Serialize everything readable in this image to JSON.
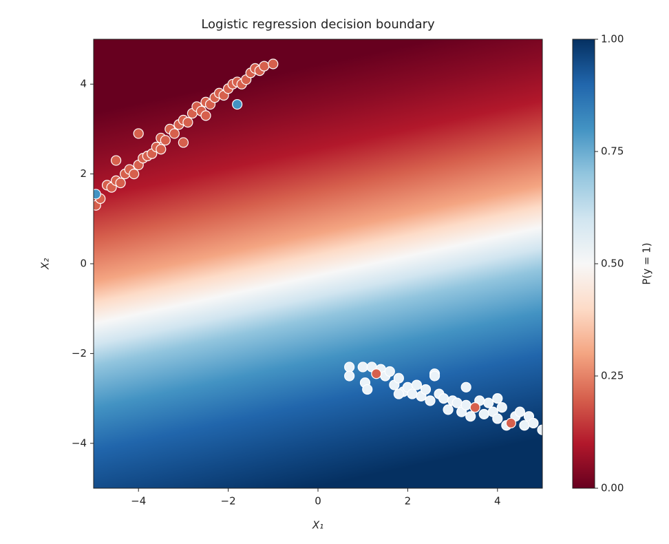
{
  "chart_data": {
    "type": "scatter",
    "title": "Logistic regression decision boundary",
    "x_label": "X₁",
    "y_label": "X₂",
    "xlim": [
      -5,
      5
    ],
    "ylim": [
      -5,
      5
    ],
    "xticks": [
      {
        "value": -4,
        "label": "−4"
      },
      {
        "value": -2,
        "label": "−2"
      },
      0,
      2,
      4
    ],
    "yticks": [
      {
        "value": -4,
        "label": "−4"
      },
      {
        "value": -2,
        "label": "−2"
      },
      0,
      2,
      4
    ],
    "series": [
      {
        "color": "#d6604d",
        "x": [
          -4.95,
          -4.85,
          -4.7,
          -4.6,
          -4.5,
          -4.4,
          -4.3,
          -4.2,
          -4.1,
          -4.0,
          -3.9,
          -3.8,
          -3.7,
          -3.6,
          -3.5,
          -3.4,
          -3.3,
          -3.2,
          -3.1,
          -3.0,
          -2.9,
          -2.8,
          -2.7,
          -2.6,
          -2.5,
          -2.4,
          -2.3,
          -2.2,
          -2.1,
          -2.0,
          -1.9,
          -1.8,
          -1.7,
          -1.6,
          -1.5,
          -1.4,
          -1.3,
          -1.2,
          -1.0,
          -4.0,
          -4.5,
          -3.5,
          -3.0,
          -2.5
        ],
        "y": [
          1.3,
          1.45,
          1.75,
          1.7,
          1.85,
          1.8,
          2.0,
          2.1,
          2.0,
          2.2,
          2.35,
          2.4,
          2.45,
          2.6,
          2.8,
          2.75,
          3.0,
          2.9,
          3.1,
          3.2,
          3.15,
          3.35,
          3.5,
          3.4,
          3.6,
          3.55,
          3.7,
          3.8,
          3.75,
          3.9,
          4.0,
          4.05,
          4.0,
          4.1,
          4.25,
          4.35,
          4.3,
          4.4,
          4.45,
          2.9,
          2.3,
          2.55,
          2.7,
          3.3
        ]
      },
      {
        "color": "#eaf2f8",
        "x": [
          0.7,
          0.7,
          1.0,
          1.05,
          1.1,
          1.2,
          1.4,
          1.5,
          1.6,
          1.7,
          1.8,
          1.9,
          2.0,
          2.1,
          2.2,
          2.3,
          2.4,
          2.5,
          2.6,
          2.7,
          2.8,
          2.9,
          3.0,
          3.1,
          3.2,
          3.3,
          3.4,
          3.5,
          3.6,
          3.7,
          3.8,
          3.9,
          4.0,
          4.1,
          4.2,
          4.4,
          4.5,
          4.6,
          4.7,
          4.8,
          5.0,
          2.6,
          3.3,
          1.8,
          4.0
        ],
        "y": [
          -2.3,
          -2.5,
          -2.3,
          -2.65,
          -2.8,
          -2.3,
          -2.35,
          -2.5,
          -2.4,
          -2.7,
          -2.55,
          -2.85,
          -2.75,
          -2.9,
          -2.7,
          -2.95,
          -2.8,
          -3.05,
          -2.45,
          -2.9,
          -3.0,
          -3.25,
          -3.05,
          -3.1,
          -3.3,
          -2.75,
          -3.4,
          -3.2,
          -3.05,
          -3.35,
          -3.1,
          -3.3,
          -3.45,
          -3.2,
          -3.6,
          -3.4,
          -3.3,
          -3.6,
          -3.4,
          -3.55,
          -3.7,
          -2.5,
          -3.15,
          -2.9,
          -3.0
        ]
      },
      {
        "color": "#4393c3",
        "x": [
          -1.8,
          -4.95
        ],
        "y": [
          3.55,
          1.55
        ]
      },
      {
        "color": "#d6604d",
        "x": [
          1.3,
          3.5,
          4.3
        ],
        "y": [
          -2.45,
          -3.2,
          -3.55
        ]
      }
    ],
    "colorbar": {
      "label": "P(y = 1)",
      "lim": [
        0,
        1
      ],
      "ticks": [
        {
          "value": 0,
          "label": "0.00"
        },
        {
          "value": 0.25,
          "label": "0.25"
        },
        {
          "value": 0.5,
          "label": "0.50"
        },
        {
          "value": 0.75,
          "label": "0.75"
        },
        {
          "value": 1,
          "label": "1.00"
        }
      ]
    }
  }
}
